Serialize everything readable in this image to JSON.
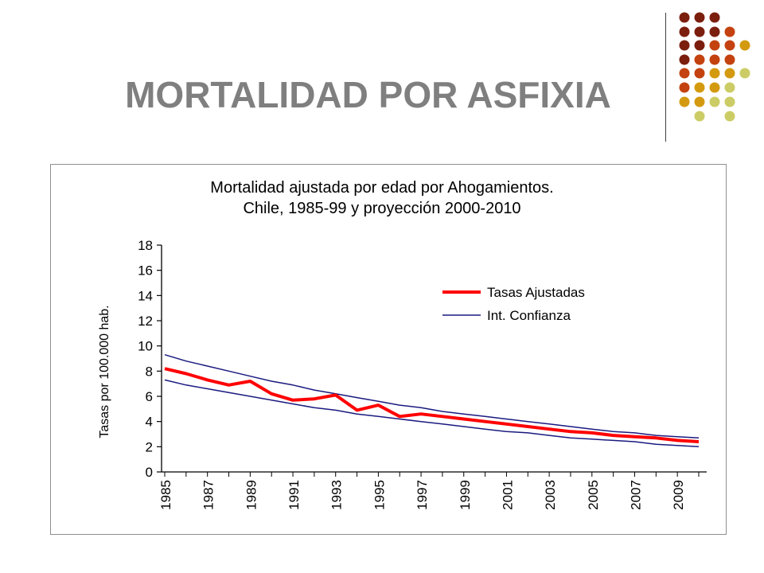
{
  "slide": {
    "title": "MORTALIDAD POR ASFIXIA",
    "dot_colors": [
      "#7b1e0e",
      "#c4420f",
      "#d49a0f",
      "#cccc66"
    ]
  },
  "chart_data": {
    "type": "line",
    "title_line1": "Mortalidad ajustada por edad por Ahogamientos.",
    "title_line2": "Chile, 1985-99 y proyección 2000-2010",
    "xlabel": "",
    "ylabel": "Tasas por 100.000 hab.",
    "ylim": [
      0,
      18
    ],
    "yticks": [
      "0",
      "2",
      "4",
      "6",
      "8",
      "10",
      "12",
      "14",
      "16",
      "18"
    ],
    "x": [
      1985,
      1986,
      1987,
      1988,
      1989,
      1990,
      1991,
      1992,
      1993,
      1994,
      1995,
      1996,
      1997,
      1998,
      1999,
      2000,
      2001,
      2002,
      2003,
      2004,
      2005,
      2006,
      2007,
      2008,
      2009,
      2010
    ],
    "xtick_labels": [
      "1985",
      "1987",
      "1989",
      "1991",
      "1993",
      "1995",
      "1997",
      "1999",
      "2001",
      "2003",
      "2005",
      "2007",
      "2009"
    ],
    "legend_position": "top-right",
    "grid": false,
    "series": [
      {
        "name": "Tasas Ajustadas",
        "color": "#ff0000",
        "values": [
          8.2,
          7.8,
          7.3,
          6.9,
          7.2,
          6.2,
          5.7,
          5.8,
          6.1,
          4.9,
          5.3,
          4.4,
          4.6,
          4.4,
          4.2,
          4.0,
          3.8,
          3.6,
          3.4,
          3.2,
          3.1,
          2.9,
          2.8,
          2.7,
          2.5,
          2.4
        ]
      },
      {
        "name": "Int. Confianza",
        "color": "#1a1a80",
        "values": [
          9.3,
          8.8,
          8.4,
          8.0,
          7.6,
          7.2,
          6.9,
          6.5,
          6.2,
          5.9,
          5.6,
          5.3,
          5.1,
          4.8,
          4.6,
          4.4,
          4.2,
          4.0,
          3.8,
          3.6,
          3.4,
          3.2,
          3.1,
          2.9,
          2.8,
          2.7
        ]
      },
      {
        "name": "",
        "color": "#1a1a80",
        "values": [
          7.3,
          6.9,
          6.6,
          6.3,
          6.0,
          5.7,
          5.4,
          5.1,
          4.9,
          4.6,
          4.4,
          4.2,
          4.0,
          3.8,
          3.6,
          3.4,
          3.2,
          3.1,
          2.9,
          2.7,
          2.6,
          2.5,
          2.4,
          2.2,
          2.1,
          2.0
        ]
      }
    ]
  }
}
